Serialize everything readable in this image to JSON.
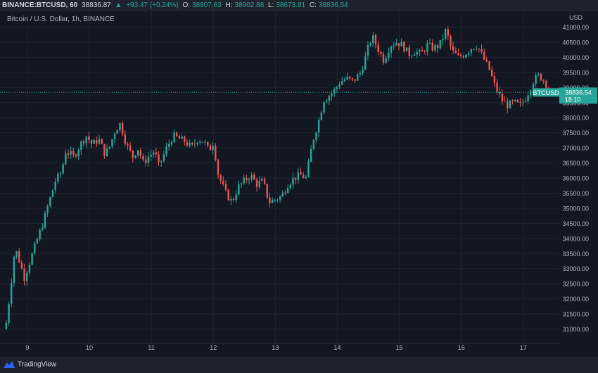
{
  "header": {
    "symbol": "BINANCE:BTCUSD, 60",
    "last": "38836.87",
    "arrow": "▲",
    "change": "+93.47 (+0.24%)",
    "o_label": "O:",
    "o_value": "38807.63",
    "h_label": "H:",
    "h_value": "38902.88",
    "l_label": "L:",
    "l_value": "38673.81",
    "c_label": "C:",
    "c_value": "38836.54"
  },
  "subtitle": "Bitcoin / U.S. Dollar, 1h, BINANCE",
  "footer": {
    "brand": "TradingView"
  },
  "colors": {
    "up": "#26a69a",
    "down": "#ef5350",
    "bg": "#131722",
    "grid": "#1f2433",
    "text": "#b2b5be"
  },
  "chart_data": {
    "type": "candlestick",
    "currency": "USD",
    "ylim": [
      30600,
      41500
    ],
    "y_ticks": [
      31000,
      31500,
      32000,
      32500,
      33000,
      33500,
      34000,
      34500,
      35000,
      35500,
      36000,
      36500,
      37000,
      37500,
      38000,
      38500,
      39000,
      39500,
      40000,
      40500,
      41000
    ],
    "x_ticks": [
      "9",
      "10",
      "11",
      "12",
      "13",
      "14",
      "15",
      "16",
      "17"
    ],
    "x_tick_days": [
      9,
      10,
      11,
      12,
      13,
      14,
      15,
      16,
      17
    ],
    "x_range_days": [
      8.65,
      17.62
    ],
    "last_price": {
      "symbol": "BTCUSD",
      "price": "38836.54",
      "countdown": "18:10",
      "value": 38836.54
    },
    "close_path": [
      [
        8.66,
        31200
      ],
      [
        8.72,
        32200
      ],
      [
        8.8,
        33700
      ],
      [
        8.88,
        33200
      ],
      [
        8.95,
        32700
      ],
      [
        9.05,
        33300
      ],
      [
        9.15,
        33900
      ],
      [
        9.25,
        34500
      ],
      [
        9.35,
        35200
      ],
      [
        9.45,
        35900
      ],
      [
        9.55,
        36200
      ],
      [
        9.62,
        36900
      ],
      [
        9.75,
        36700
      ],
      [
        9.85,
        37100
      ],
      [
        9.95,
        37400
      ],
      [
        10.05,
        37100
      ],
      [
        10.15,
        37300
      ],
      [
        10.25,
        36800
      ],
      [
        10.32,
        37000
      ],
      [
        10.42,
        37600
      ],
      [
        10.5,
        37800
      ],
      [
        10.6,
        37100
      ],
      [
        10.7,
        36700
      ],
      [
        10.78,
        37000
      ],
      [
        10.87,
        36500
      ],
      [
        10.95,
        36700
      ],
      [
        11.05,
        36900
      ],
      [
        11.12,
        36400
      ],
      [
        11.25,
        37000
      ],
      [
        11.35,
        37400
      ],
      [
        11.45,
        37300
      ],
      [
        11.55,
        37200
      ],
      [
        11.65,
        37000
      ],
      [
        11.75,
        37300
      ],
      [
        11.85,
        37200
      ],
      [
        11.93,
        36900
      ],
      [
        12.0,
        37200
      ],
      [
        12.08,
        36100
      ],
      [
        12.2,
        35500
      ],
      [
        12.3,
        35200
      ],
      [
        12.4,
        35700
      ],
      [
        12.5,
        35900
      ],
      [
        12.6,
        36100
      ],
      [
        12.7,
        35800
      ],
      [
        12.8,
        35900
      ],
      [
        12.9,
        35200
      ],
      [
        13.0,
        35300
      ],
      [
        13.1,
        35400
      ],
      [
        13.2,
        35800
      ],
      [
        13.3,
        36000
      ],
      [
        13.4,
        36100
      ],
      [
        13.5,
        36000
      ],
      [
        13.6,
        37200
      ],
      [
        13.7,
        37900
      ],
      [
        13.78,
        38600
      ],
      [
        13.85,
        38700
      ],
      [
        13.95,
        38900
      ],
      [
        14.05,
        39200
      ],
      [
        14.15,
        39300
      ],
      [
        14.25,
        39200
      ],
      [
        14.38,
        39500
      ],
      [
        14.48,
        40200
      ],
      [
        14.56,
        40700
      ],
      [
        14.65,
        40300
      ],
      [
        14.75,
        39900
      ],
      [
        14.85,
        40400
      ],
      [
        14.95,
        40500
      ],
      [
        15.05,
        40400
      ],
      [
        15.15,
        40100
      ],
      [
        15.25,
        40200
      ],
      [
        15.35,
        40100
      ],
      [
        15.45,
        40400
      ],
      [
        15.55,
        40300
      ],
      [
        15.65,
        40400
      ],
      [
        15.75,
        40900
      ],
      [
        15.85,
        40200
      ],
      [
        15.95,
        40000
      ],
      [
        16.05,
        40100
      ],
      [
        16.15,
        40300
      ],
      [
        16.25,
        40400
      ],
      [
        16.35,
        40000
      ],
      [
        16.45,
        39600
      ],
      [
        16.55,
        39000
      ],
      [
        16.65,
        38600
      ],
      [
        16.75,
        38400
      ],
      [
        16.85,
        38500
      ],
      [
        16.95,
        38400
      ],
      [
        17.05,
        38700
      ],
      [
        17.15,
        39200
      ],
      [
        17.25,
        39400
      ],
      [
        17.35,
        39200
      ],
      [
        17.42,
        38837
      ]
    ]
  }
}
